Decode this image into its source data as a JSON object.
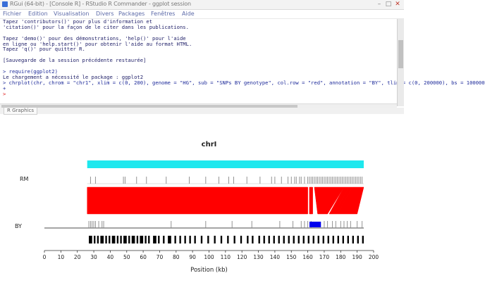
{
  "window": {
    "title": "RGui (64-bit) - [Console R] - RStudio R Commander - ggplot session",
    "minimize_label": "–",
    "maximize_label": "□",
    "close_label": "✕"
  },
  "menu": [
    "Fichier",
    "Edition",
    "Visualisation",
    "Divers",
    "Packages",
    "Fenêtres",
    "Aide"
  ],
  "console": {
    "lines": [
      {
        "text": "Tapez 'contributors()' pour plus d'information et",
        "kind": "out"
      },
      {
        "text": "'citation()' pour la façon de le citer dans les publications.",
        "kind": "out"
      },
      {
        "text": "",
        "kind": "out"
      },
      {
        "text": "Tapez 'demo()' pour des démonstrations, 'help()' pour l'aide",
        "kind": "out"
      },
      {
        "text": "en ligne ou 'help.start()' pour obtenir l'aide au format HTML.",
        "kind": "out"
      },
      {
        "text": "Tapez 'q()' pour quitter R.",
        "kind": "out"
      },
      {
        "text": "",
        "kind": "out"
      },
      {
        "text": "[Sauvegarde de la session précédente restaurée]",
        "kind": "out"
      },
      {
        "text": "",
        "kind": "out"
      },
      {
        "text": "> require(ggplot2)",
        "kind": "cmd"
      },
      {
        "text": "Le chargement a nécessité le package : ggplot2",
        "kind": "out"
      },
      {
        "text": "> chrplot(chr, chrom = \"chr1\", xlim = c(0, 200), genome = \"HG\", sub = \"SNPs BY genotype\", col.row = \"red\", annotation = \"BY\", tlim = c(0, 200000), bs = 100000",
        "kind": "cmd"
      },
      {
        "text": "+",
        "kind": "cmd"
      },
      {
        "text": ">",
        "kind": "prompt"
      }
    ]
  },
  "tab_label": "R Graphics",
  "chart_data": {
    "type": "track",
    "title": "chrI",
    "xlabel": "Position (kb)",
    "xlim": [
      0,
      200
    ],
    "x_ticks": [
      0,
      10,
      20,
      30,
      40,
      50,
      60,
      70,
      80,
      90,
      100,
      110,
      120,
      130,
      140,
      150,
      160,
      170,
      180,
      190,
      200
    ],
    "track_labels": [
      "RM",
      "BY"
    ],
    "colors": {
      "coverage_bar": "#1ee8ee",
      "synteny": "#ff0000",
      "highlight": "#0000ee",
      "tick_gray": "#888888",
      "feature": "#000000"
    },
    "coverage_range": [
      26,
      194
    ],
    "highlight_block": [
      161,
      168
    ],
    "upper_ticks": [
      28,
      31,
      48,
      49,
      56,
      62,
      74,
      88,
      98,
      106,
      112,
      115,
      123,
      131,
      138,
      140,
      144,
      148,
      150,
      152,
      153,
      155,
      156,
      158,
      160,
      161,
      162,
      163,
      164,
      165,
      166,
      167,
      168,
      169,
      170,
      171,
      172,
      173,
      174,
      175,
      176,
      177,
      178,
      179,
      180,
      181,
      182,
      183,
      184,
      185,
      186,
      187,
      188,
      189,
      190,
      191,
      192,
      193
    ],
    "lower_ticks": [
      27,
      28,
      29,
      30,
      31,
      33,
      35,
      36,
      77,
      98,
      114,
      126,
      143,
      151,
      156,
      158,
      160,
      162,
      170,
      172,
      175,
      177,
      180,
      182,
      184,
      186,
      190,
      193
    ],
    "synteny_blocks": [
      {
        "from": [
          26,
          160
        ],
        "to": [
          26,
          160
        ]
      },
      {
        "from": [
          161,
          163
        ],
        "to": [
          161,
          163
        ]
      },
      {
        "from": [
          164,
          182
        ],
        "to": [
          166,
          172
        ]
      },
      {
        "from": [
          182,
          185
        ],
        "to": [
          173,
          176
        ]
      },
      {
        "from": [
          185,
          187
        ],
        "to": [
          176,
          178
        ]
      },
      {
        "from": [
          187,
          194
        ],
        "to": [
          178,
          190
        ]
      }
    ],
    "features": [
      [
        27,
        29
      ],
      [
        30,
        31
      ],
      [
        32,
        33
      ],
      [
        34,
        36
      ],
      [
        37,
        38
      ],
      [
        39,
        40
      ],
      [
        41,
        43
      ],
      [
        44,
        45
      ],
      [
        46,
        47
      ],
      [
        48,
        50
      ],
      [
        51,
        52
      ],
      [
        53,
        55
      ],
      [
        56,
        57
      ],
      [
        58,
        60
      ],
      [
        61,
        62
      ],
      [
        63,
        64
      ],
      [
        66,
        68
      ],
      [
        69,
        70
      ],
      [
        72,
        73
      ],
      [
        75,
        77
      ],
      [
        79,
        80
      ],
      [
        82,
        83
      ],
      [
        85,
        86
      ],
      [
        88,
        89
      ],
      [
        91,
        92
      ],
      [
        95,
        96
      ],
      [
        99,
        100
      ],
      [
        103,
        104
      ],
      [
        107,
        108
      ],
      [
        111,
        112
      ],
      [
        115,
        116
      ],
      [
        119,
        120
      ],
      [
        123,
        124
      ],
      [
        126,
        127
      ],
      [
        130,
        131
      ],
      [
        133,
        134
      ],
      [
        136,
        137
      ],
      [
        139,
        140
      ],
      [
        142,
        143
      ],
      [
        145,
        146
      ],
      [
        148,
        149
      ],
      [
        151,
        152
      ],
      [
        154,
        155
      ],
      [
        157,
        158
      ],
      [
        160,
        161
      ],
      [
        163,
        164
      ],
      [
        166,
        167
      ],
      [
        169,
        170
      ],
      [
        172,
        173
      ],
      [
        175,
        176
      ],
      [
        178,
        179
      ],
      [
        181,
        182
      ],
      [
        184,
        185
      ],
      [
        187,
        188
      ],
      [
        190,
        191
      ],
      [
        193,
        194
      ]
    ]
  }
}
